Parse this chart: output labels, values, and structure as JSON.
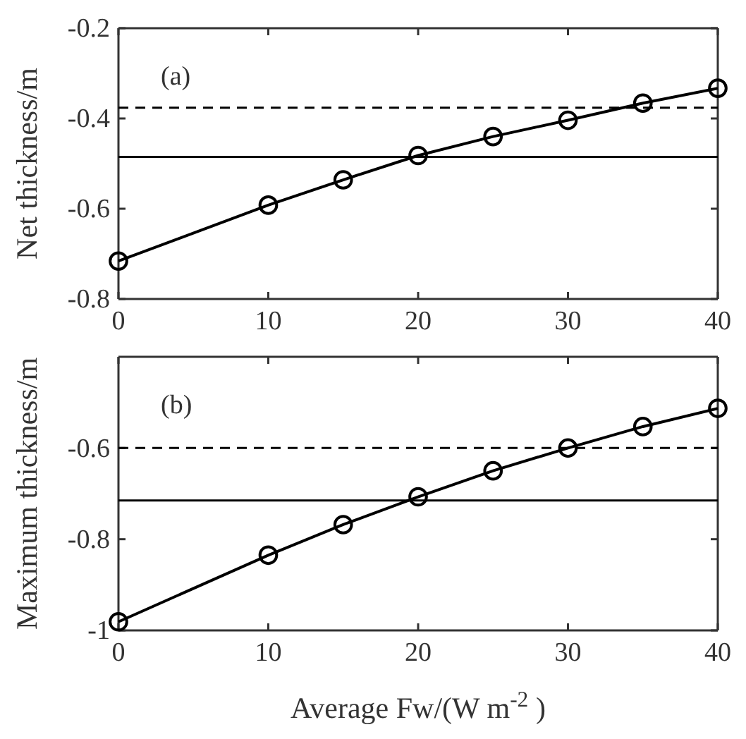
{
  "chart_data": [
    {
      "type": "line",
      "ylabel": "Net thickness/m",
      "annotations": [
        "(a)"
      ],
      "x": [
        0,
        10,
        15,
        20,
        25,
        30,
        35,
        40
      ],
      "series": [
        {
          "color": "#000000",
          "values": [
            -0.716,
            -0.592,
            -0.536,
            -0.482,
            -0.44,
            -0.404,
            -0.366,
            -0.333
          ]
        }
      ],
      "marker": "circle",
      "line_style": "solid",
      "xlim": [
        0,
        40
      ],
      "xticks": [
        0,
        10,
        20,
        30,
        40
      ],
      "ylim": [
        -0.8,
        -0.2
      ],
      "yticks": [
        -0.8,
        -0.6,
        -0.4,
        -0.2
      ],
      "ref_lines": [
        {
          "axis": "y",
          "value": -0.376,
          "color": "#000000",
          "line_style": "dashed"
        },
        {
          "axis": "y",
          "value": -0.485,
          "color": "#000000",
          "line_style": "solid"
        }
      ],
      "grid": false
    },
    {
      "type": "line",
      "ylabel": "Maximum thickness/m",
      "xlabel": "Average Fw/(W m$^{-2}$ )",
      "annotations": [
        "(b)"
      ],
      "x": [
        0,
        10,
        15,
        20,
        25,
        30,
        35,
        40
      ],
      "series": [
        {
          "color": "#000000",
          "values": [
            -0.981,
            -0.835,
            -0.768,
            -0.707,
            -0.65,
            -0.6,
            -0.553,
            -0.513
          ]
        }
      ],
      "marker": "circle",
      "line_style": "solid",
      "xlim": [
        0,
        40
      ],
      "xticks": [
        0,
        10,
        20,
        30,
        40
      ],
      "ylim": [
        -1,
        -0.4
      ],
      "yticks": [
        -1,
        -0.8,
        -0.6
      ],
      "ref_lines": [
        {
          "axis": "y",
          "value": -0.6,
          "color": "#000000",
          "line_style": "dashed"
        },
        {
          "axis": "y",
          "value": -0.715,
          "color": "#000000",
          "line_style": "solid"
        }
      ],
      "grid": false
    }
  ]
}
